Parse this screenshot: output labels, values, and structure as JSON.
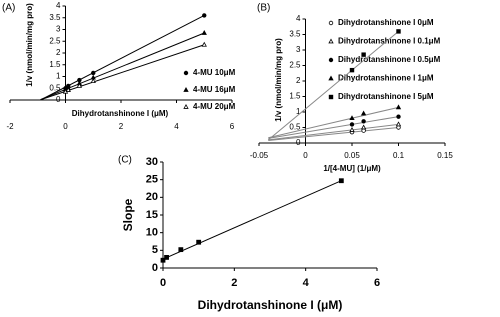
{
  "chart_data": [
    {
      "type": "scatter",
      "panel_label": "(A)",
      "xlabel": "Dihydrotanshinone I (μM)",
      "ylabel": "1/v (nmol/min/mg pro)",
      "xlim": [
        -2,
        6
      ],
      "ylim": [
        0,
        4
      ],
      "xticks": [
        -2,
        0,
        2,
        4,
        6
      ],
      "yticks": [
        0,
        0.5,
        1,
        1.5,
        2,
        2.5,
        3,
        3.5,
        4
      ],
      "legend": "lower right",
      "series": [
        {
          "name": "4-MU 10μM",
          "marker": "circle",
          "filled": true,
          "color": "#000000",
          "line_color": "#000000",
          "x": [
            0,
            0.1,
            0.5,
            1,
            5
          ],
          "values": [
            0.5,
            0.6,
            0.85,
            1.15,
            3.6
          ],
          "fit": {
            "x": [
              -0.9,
              5
            ],
            "values": [
              0.0,
              3.6
            ]
          }
        },
        {
          "name": "4-MU 16μM",
          "marker": "triangle",
          "filled": true,
          "color": "#000000",
          "line_color": "#000000",
          "x": [
            0,
            0.1,
            0.5,
            1,
            5
          ],
          "values": [
            0.45,
            0.5,
            0.7,
            0.95,
            2.85
          ],
          "fit": {
            "x": [
              -0.9,
              5
            ],
            "values": [
              0.02,
              2.85
            ]
          }
        },
        {
          "name": "4-MU 20μM",
          "marker": "triangle",
          "filled": false,
          "color": "#000000",
          "line_color": "#000000",
          "x": [
            0,
            0.1,
            0.5,
            1,
            5
          ],
          "values": [
            0.35,
            0.42,
            0.6,
            0.8,
            2.35
          ],
          "fit": {
            "x": [
              -0.9,
              5
            ],
            "values": [
              0.01,
              2.35
            ]
          }
        }
      ]
    },
    {
      "type": "scatter",
      "panel_label": "(B)",
      "xlabel": "1/[4-MU] (1/μM)",
      "ylabel": "1/v (nmol/min/mg pro)",
      "xlim": [
        -0.05,
        0.15
      ],
      "ylim": [
        0,
        4
      ],
      "xticks": [
        -0.05,
        0,
        0.05,
        0.1,
        0.15
      ],
      "yticks": [
        0,
        0.5,
        1,
        1.5,
        2,
        2.5,
        3,
        3.5,
        4
      ],
      "legend": "upper right",
      "series": [
        {
          "name": "Dihydrotanshinone I 0μM",
          "marker": "circle",
          "filled": false,
          "color": "#000000",
          "line_color": "#888888",
          "x": [
            0.05,
            0.0625,
            0.1
          ],
          "values": [
            0.35,
            0.4,
            0.5
          ],
          "fit": {
            "x": [
              -0.04,
              0.1
            ],
            "values": [
              0.08,
              0.5
            ]
          }
        },
        {
          "name": "Dihydrotanshinone I 0.1μM",
          "marker": "triangle",
          "filled": false,
          "color": "#000000",
          "line_color": "#888888",
          "x": [
            0.05,
            0.0625,
            0.1
          ],
          "values": [
            0.42,
            0.5,
            0.6
          ],
          "fit": {
            "x": [
              -0.04,
              0.1
            ],
            "values": [
              0.1,
              0.6
            ]
          }
        },
        {
          "name": "Dihydrotanshinone I 0.5μM",
          "marker": "circle",
          "filled": true,
          "color": "#000000",
          "line_color": "#888888",
          "x": [
            0.05,
            0.0625,
            0.1
          ],
          "values": [
            0.6,
            0.7,
            0.85
          ],
          "fit": {
            "x": [
              -0.04,
              0.1
            ],
            "values": [
              0.15,
              0.85
            ]
          }
        },
        {
          "name": "Dihydrotanshinone I 1μM",
          "marker": "triangle",
          "filled": true,
          "color": "#000000",
          "line_color": "#888888",
          "x": [
            0.05,
            0.0625,
            0.1
          ],
          "values": [
            0.8,
            0.95,
            1.15
          ],
          "fit": {
            "x": [
              -0.04,
              0.1
            ],
            "values": [
              0.17,
              1.15
            ]
          }
        },
        {
          "name": "Dihydrotanshinone I 5μM",
          "marker": "square",
          "filled": true,
          "color": "#000000",
          "line_color": "#888888",
          "x": [
            0.05,
            0.0625,
            0.1
          ],
          "values": [
            2.35,
            2.85,
            3.6
          ],
          "fit": {
            "x": [
              -0.04,
              0.1
            ],
            "values": [
              0.1,
              3.6
            ]
          }
        }
      ]
    },
    {
      "type": "scatter",
      "panel_label": "(C)",
      "xlabel": "Dihydrotanshinone I (μM)",
      "ylabel": "Slope",
      "xlim": [
        0,
        6
      ],
      "ylim": [
        0,
        30
      ],
      "xticks": [
        0,
        2,
        4,
        6
      ],
      "yticks": [
        0,
        5,
        10,
        15,
        20,
        25,
        30
      ],
      "series": [
        {
          "marker": "square",
          "filled": true,
          "color": "#000000",
          "line_color": "#000000",
          "x": [
            0,
            0.1,
            0.5,
            1,
            5
          ],
          "values": [
            2.2,
            3.0,
            5.2,
            7.3,
            24.7
          ],
          "fit": {
            "x": [
              0,
              5
            ],
            "values": [
              2.5,
              24.7
            ]
          }
        }
      ]
    }
  ]
}
